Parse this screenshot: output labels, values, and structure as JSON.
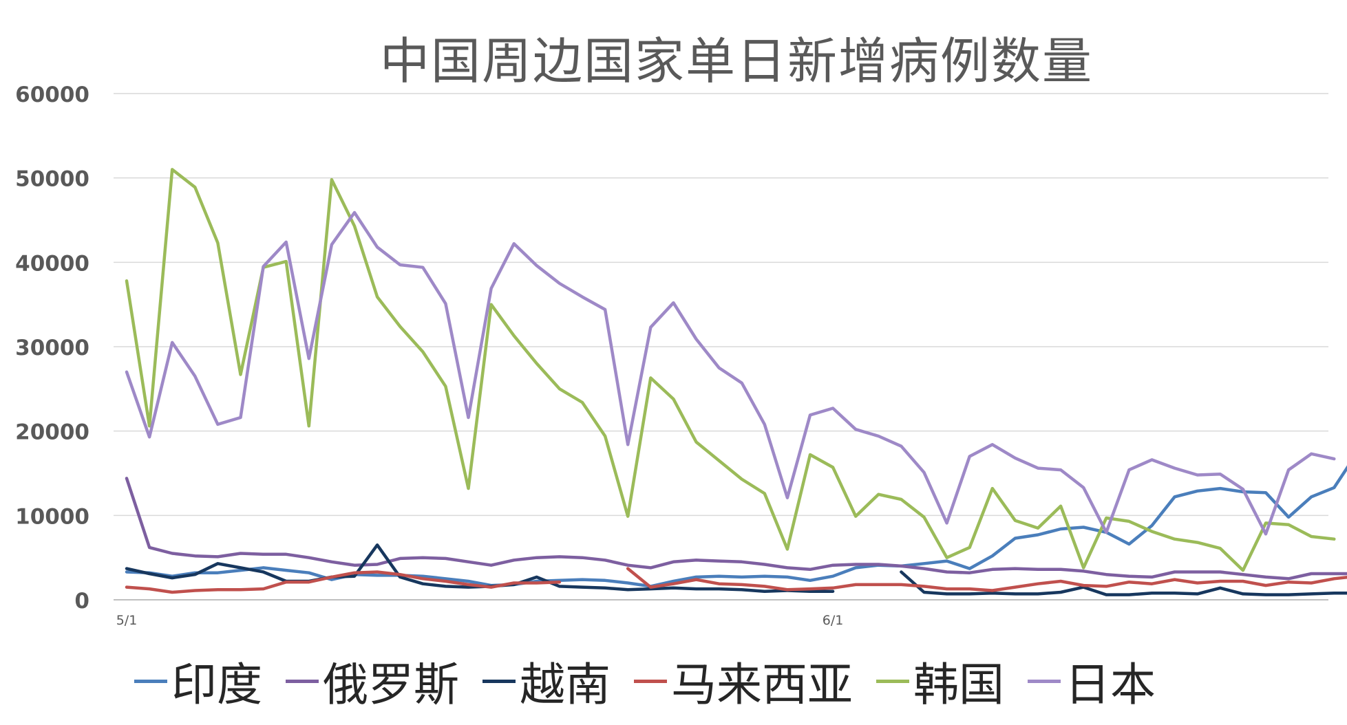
{
  "chart_data": {
    "type": "line",
    "title": "中国周边国家单日新增病例数量",
    "xlabel": "",
    "ylabel": "",
    "x_tick_labels": [
      {
        "index": 0,
        "label": "5/1"
      },
      {
        "index": 31,
        "label": "6/1"
      }
    ],
    "ylim": [
      0,
      60000
    ],
    "yticks": [
      0,
      10000,
      20000,
      30000,
      40000,
      50000,
      60000
    ],
    "grid": true,
    "legend": "bottom",
    "series": [
      {
        "name": "印度",
        "color": "#4a7ebb",
        "values": [
          3300,
          3200,
          2800,
          3200,
          3200,
          3500,
          3800,
          3500,
          3200,
          2400,
          3000,
          2900,
          2900,
          2800,
          2500,
          2200,
          1700,
          1800,
          2200,
          2300,
          2400,
          2300,
          2000,
          1600,
          2200,
          2700,
          2800,
          2700,
          2800,
          2700,
          2300,
          2800,
          3800,
          4100,
          4000,
          4300,
          4600,
          3700,
          5200,
          7300,
          7700,
          8400,
          8600,
          8000,
          6600,
          8800,
          12200,
          12900,
          13200,
          12800,
          12700,
          9800,
          12200,
          13300,
          17400
        ]
      },
      {
        "name": "俄罗斯",
        "color": "#7d5fa0",
        "values": [
          14400,
          6200,
          5500,
          5200,
          5100,
          5500,
          5400,
          5400,
          5000,
          4500,
          4100,
          4200,
          4900,
          5000,
          4900,
          4500,
          4100,
          4700,
          5000,
          5100,
          5000,
          4700,
          4100,
          3800,
          4500,
          4700,
          4600,
          4500,
          4200,
          3800,
          3600,
          4100,
          4200,
          4200,
          4000,
          3700,
          3300,
          3200,
          3600,
          3700,
          3600,
          3600,
          3400,
          3000,
          2800,
          2700,
          3300,
          3300,
          3300,
          3000,
          2700,
          2500,
          3100,
          3100,
          3100
        ]
      },
      {
        "name": "越南",
        "color": "#17375e",
        "values": [
          3700,
          3100,
          2600,
          3000,
          4300,
          3800,
          3300,
          2200,
          2200,
          2700,
          2800,
          6500,
          2700,
          1900,
          1600,
          1500,
          1600,
          1800,
          2700,
          1600,
          1500,
          1400,
          1200,
          1300,
          1400,
          1300,
          1300,
          1200,
          1000,
          1100,
          1000,
          1000,
          null,
          null,
          3300,
          900,
          700,
          700,
          800,
          700,
          700,
          900,
          1500,
          600,
          600,
          800,
          800,
          700,
          1400,
          700,
          600,
          600,
          700,
          800,
          800
        ]
      },
      {
        "name": "马来西亚",
        "color": "#c0504d",
        "values": [
          1500,
          1300,
          900,
          1100,
          1200,
          1200,
          1300,
          2100,
          2100,
          2700,
          3200,
          3300,
          3000,
          2500,
          2200,
          1800,
          1500,
          2000,
          2000,
          2100,
          null,
          null,
          3700,
          1500,
          1900,
          2400,
          1900,
          1800,
          1600,
          1200,
          1300,
          1400,
          1800,
          1800,
          1800,
          1600,
          1300,
          1300,
          1100,
          1500,
          1900,
          2200,
          1700,
          1600,
          2100,
          1900,
          2400,
          2000,
          2200,
          2200,
          1700,
          2100,
          2000,
          2500,
          2800
        ]
      },
      {
        "name": "韩国",
        "color": "#9bbb59",
        "values": [
          37800,
          20600,
          51000,
          48900,
          42300,
          26700,
          39400,
          40100,
          20600,
          49800,
          44300,
          35900,
          32400,
          29400,
          25300,
          13200,
          35000,
          31300,
          28000,
          25000,
          23400,
          19400,
          9900,
          26300,
          23800,
          18700,
          16500,
          14300,
          12600,
          6000,
          17200,
          15700,
          9900,
          12500,
          11900,
          9800,
          5000,
          6200,
          13200,
          9400,
          8500,
          11100,
          3800,
          9700,
          9300,
          8100,
          7200,
          6800,
          6100,
          3500,
          9100,
          8900,
          7500,
          7200,
          null
        ]
      },
      {
        "name": "日本",
        "color": "#9e89c7",
        "values": [
          27000,
          19300,
          30500,
          26500,
          20800,
          21600,
          39500,
          42400,
          28600,
          42100,
          45900,
          41800,
          39700,
          39400,
          35100,
          21600,
          36900,
          42200,
          39600,
          37500,
          35900,
          34400,
          18400,
          32300,
          35200,
          30900,
          27500,
          25700,
          20800,
          12100,
          21900,
          22700,
          20200,
          19400,
          18200,
          15100,
          9100,
          17000,
          18400,
          16800,
          15600,
          15400,
          13300,
          8000,
          15400,
          16600,
          15600,
          14800,
          14900,
          13100,
          7800,
          15400,
          17300,
          16700,
          null
        ]
      }
    ]
  }
}
